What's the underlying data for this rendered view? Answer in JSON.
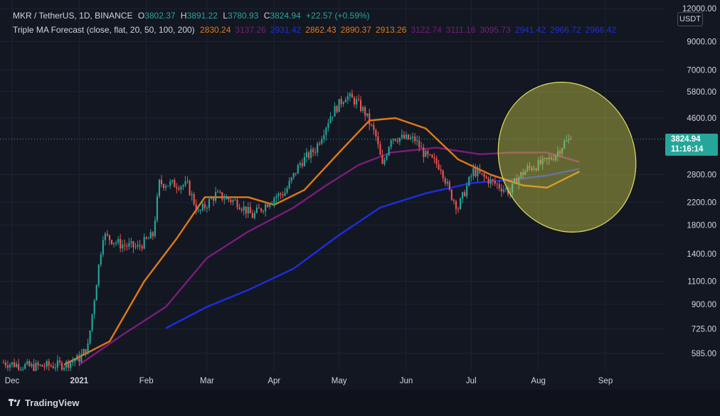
{
  "header": {
    "symbol": "MKR / TetherUS, 1D, BINANCE",
    "o_label": "O",
    "o": "3802.37",
    "h_label": "H",
    "h": "3891.22",
    "l_label": "L",
    "l": "3780.93",
    "c_label": "C",
    "c": "3824.94",
    "change": "+22.57 (+0.59%)",
    "indicator": "Triple MA Forecast (close, flat, 20, 50, 100, 200)",
    "ind_values": [
      "2830.24",
      "3137.26",
      "2931.42",
      "2862.43",
      "2890.37",
      "2913.26",
      "3122.74",
      "3111.16",
      "3095.73",
      "2941.42",
      "2966.72",
      "2966.42"
    ]
  },
  "currency": "USDT",
  "last_price": "3824.94",
  "countdown": "11:16:14",
  "brand": "TradingView",
  "colors": {
    "background": "#131722",
    "up": "#26a69a",
    "down": "#ef5350",
    "ma20": "#e07a13",
    "ma50": "#7b1c7b",
    "ma200": "#1c2ee0",
    "highlight": "#c8c84a",
    "text": "#d1d4dc"
  },
  "chart_data": {
    "type": "candlestick",
    "scale": "log",
    "ylim": [
      500,
      12000
    ],
    "y_ticks": [
      "12000.00",
      "9000.00",
      "7000.00",
      "5800.00",
      "4600.00",
      "2800.00",
      "2200.00",
      "1800.00",
      "1400.00",
      "1100.00",
      "900.00",
      "725.00",
      "585.00"
    ],
    "x_ticks": [
      "Dec",
      "2021",
      "Feb",
      "Mar",
      "Apr",
      "May",
      "Jun",
      "Jul",
      "Aug",
      "Sep"
    ],
    "close_anchors": [
      [
        "2020-11-27",
        540
      ],
      [
        "2020-12-10",
        520
      ],
      [
        "2020-12-25",
        530
      ],
      [
        "2021-01-01",
        560
      ],
      [
        "2021-01-05",
        620
      ],
      [
        "2021-01-09",
        1100
      ],
      [
        "2021-01-12",
        1650
      ],
      [
        "2021-01-20",
        1520
      ],
      [
        "2021-01-28",
        1480
      ],
      [
        "2021-02-04",
        1650
      ],
      [
        "2021-02-07",
        2600
      ],
      [
        "2021-02-20",
        2550
      ],
      [
        "2021-02-25",
        2000
      ],
      [
        "2021-03-05",
        2350
      ],
      [
        "2021-03-15",
        2200
      ],
      [
        "2021-03-22",
        1950
      ],
      [
        "2021-04-01",
        2300
      ],
      [
        "2021-04-06",
        2400
      ],
      [
        "2021-04-13",
        3100
      ],
      [
        "2021-04-20",
        3500
      ],
      [
        "2021-04-27",
        4700
      ],
      [
        "2021-05-04",
        5600
      ],
      [
        "2021-05-09",
        5300
      ],
      [
        "2021-05-13",
        4800
      ],
      [
        "2021-05-18",
        3900
      ],
      [
        "2021-05-21",
        3000
      ],
      [
        "2021-05-25",
        3900
      ],
      [
        "2021-06-05",
        3800
      ],
      [
        "2021-06-10",
        3300
      ],
      [
        "2021-06-17",
        3000
      ],
      [
        "2021-06-21",
        2400
      ],
      [
        "2021-06-25",
        2100
      ],
      [
        "2021-07-02",
        2900
      ],
      [
        "2021-07-08",
        2700
      ],
      [
        "2021-07-19",
        2400
      ],
      [
        "2021-07-22",
        2700
      ],
      [
        "2021-07-27",
        2950
      ],
      [
        "2021-08-05",
        3150
      ],
      [
        "2021-08-09",
        3350
      ],
      [
        "2021-08-13",
        3700
      ],
      [
        "2021-08-16",
        3824.94
      ]
    ],
    "ma20": [
      [
        "2020-12-25",
        530
      ],
      [
        "2021-01-15",
        650
      ],
      [
        "2021-01-31",
        1100
      ],
      [
        "2021-02-15",
        1600
      ],
      [
        "2021-02-28",
        2300
      ],
      [
        "2021-03-20",
        2300
      ],
      [
        "2021-04-01",
        2150
      ],
      [
        "2021-04-15",
        2450
      ],
      [
        "2021-05-01",
        3400
      ],
      [
        "2021-05-15",
        4500
      ],
      [
        "2021-05-27",
        4600
      ],
      [
        "2021-06-10",
        4200
      ],
      [
        "2021-06-25",
        3200
      ],
      [
        "2021-07-10",
        2800
      ],
      [
        "2021-07-25",
        2550
      ],
      [
        "2021-08-05",
        2500
      ],
      [
        "2021-08-20",
        2880
      ]
    ],
    "ma50": [
      [
        "2021-01-01",
        530
      ],
      [
        "2021-01-20",
        680
      ],
      [
        "2021-02-10",
        880
      ],
      [
        "2021-03-01",
        1350
      ],
      [
        "2021-03-20",
        1700
      ],
      [
        "2021-04-10",
        2100
      ],
      [
        "2021-04-25",
        2550
      ],
      [
        "2021-05-10",
        3050
      ],
      [
        "2021-05-25",
        3400
      ],
      [
        "2021-06-15",
        3550
      ],
      [
        "2021-07-05",
        3350
      ],
      [
        "2021-07-20",
        3400
      ],
      [
        "2021-08-05",
        3400
      ],
      [
        "2021-08-20",
        3130
      ]
    ],
    "ma200": [
      [
        "2021-02-10",
        730
      ],
      [
        "2021-03-01",
        880
      ],
      [
        "2021-03-20",
        1020
      ],
      [
        "2021-04-10",
        1230
      ],
      [
        "2021-05-01",
        1650
      ],
      [
        "2021-05-20",
        2100
      ],
      [
        "2021-06-10",
        2380
      ],
      [
        "2021-07-01",
        2600
      ],
      [
        "2021-07-20",
        2680
      ],
      [
        "2021-08-05",
        2780
      ],
      [
        "2021-08-20",
        2950
      ]
    ]
  }
}
